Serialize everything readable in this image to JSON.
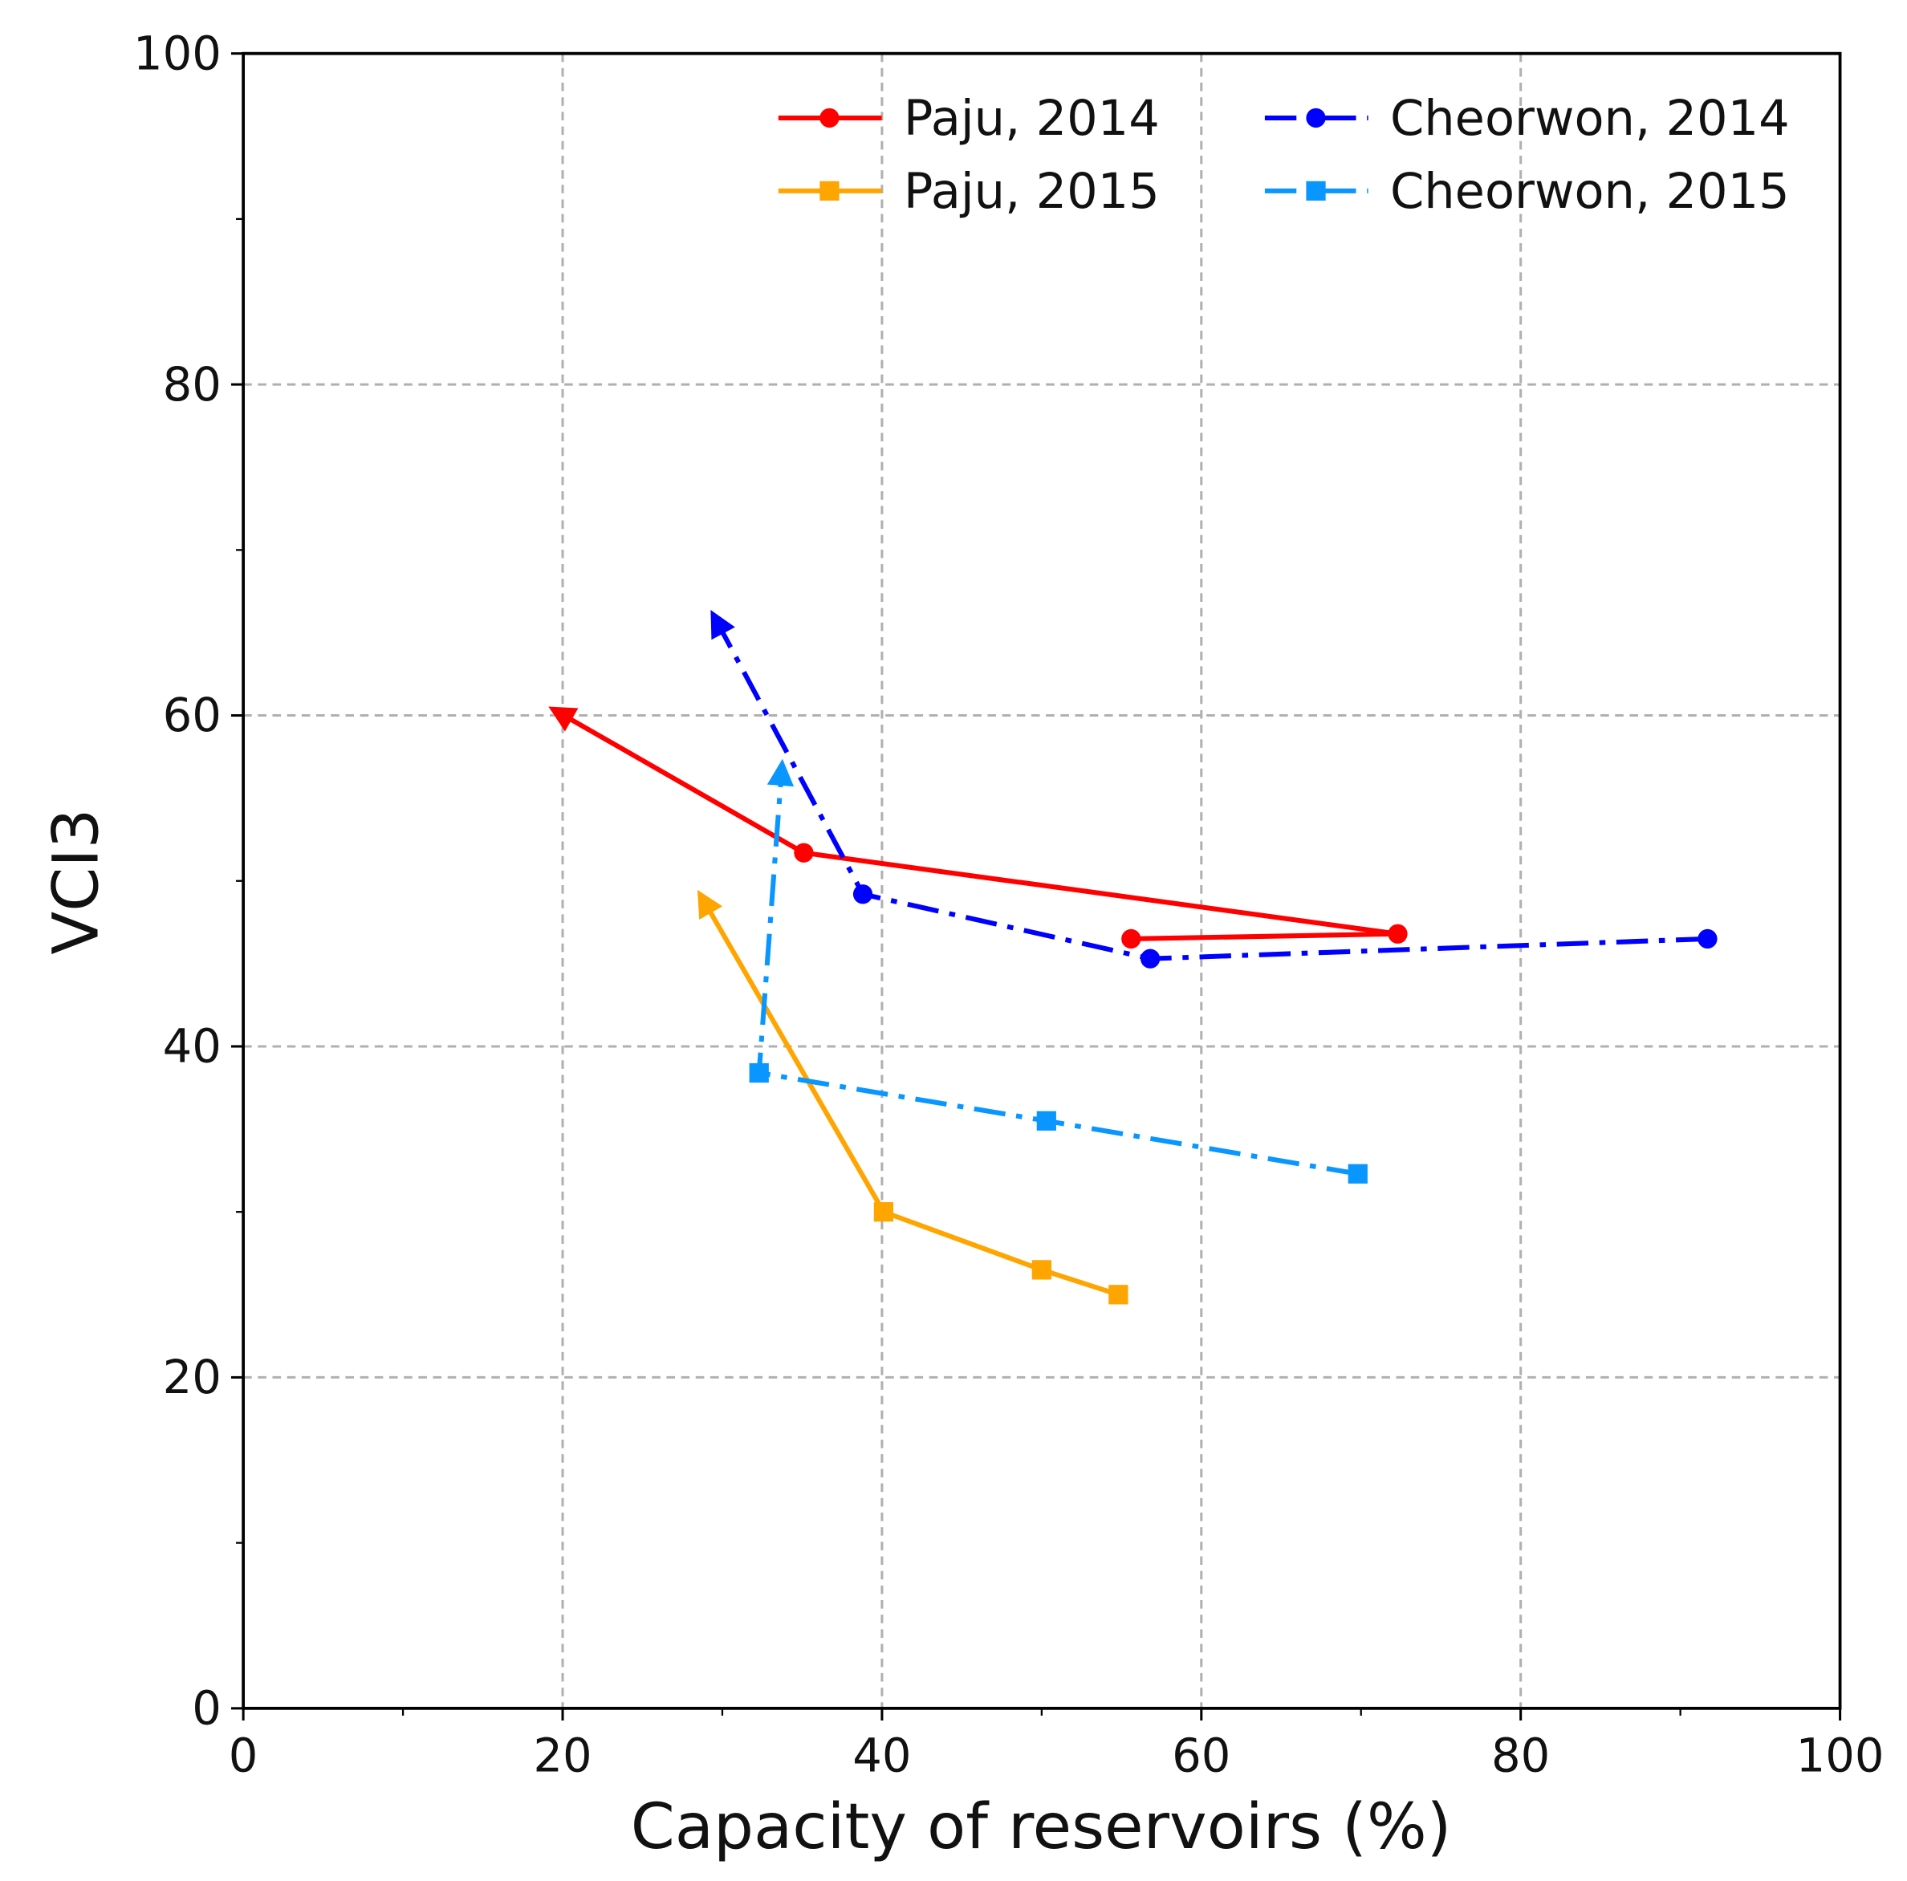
{
  "chart_data": {
    "type": "line",
    "title": "",
    "xlabel": "Capacity of reservoirs (%)",
    "ylabel": "VCI3",
    "xlim": [
      0,
      100
    ],
    "ylim": [
      0,
      100
    ],
    "xticks": [
      "0",
      "20",
      "40",
      "60",
      "80",
      "100"
    ],
    "yticks": [
      "0",
      "20",
      "40",
      "60",
      "80",
      "100"
    ],
    "grid": true,
    "legend_position": "top-right",
    "series": [
      {
        "name": "Paju, 2014",
        "color": "#ff0000",
        "linestyle": "solid",
        "marker": "circle",
        "x": [
          55.6,
          72.3,
          35.1,
          19.9
        ],
        "y": [
          46.5,
          46.8,
          51.7,
          60.1
        ]
      },
      {
        "name": "Paju, 2015",
        "color": "#ffa500",
        "linestyle": "solid",
        "marker": "square",
        "x": [
          54.8,
          50.0,
          40.1,
          28.9
        ],
        "y": [
          25.0,
          26.5,
          30.0,
          48.7
        ]
      },
      {
        "name": "Cheorwon, 2014",
        "color": "#0000ff",
        "linestyle": "dashdot",
        "marker": "circle",
        "x": [
          91.7,
          56.8,
          38.8,
          29.7
        ],
        "y": [
          46.5,
          45.3,
          49.2,
          65.6
        ]
      },
      {
        "name": "Cheorwon, 2015",
        "color": "#0a96ff",
        "linestyle": "dashdot",
        "marker": "square",
        "x": [
          69.8,
          50.3,
          32.3,
          33.7
        ],
        "y": [
          32.3,
          35.5,
          38.4,
          56.5
        ]
      }
    ]
  }
}
